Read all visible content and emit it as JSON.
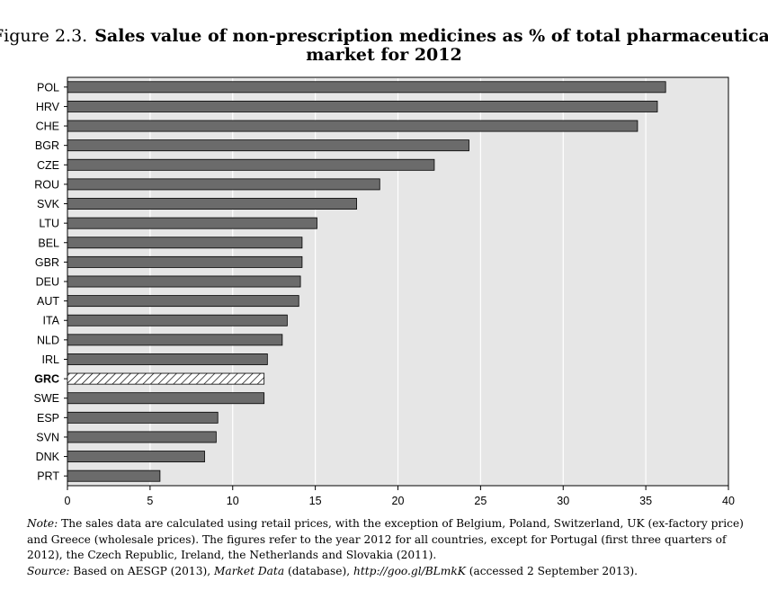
{
  "figure": {
    "number": "Figure 2.3.",
    "title_line1": "Sales value of non-prescription medicines as % of total pharmaceutical",
    "title_line2": "market for 2012"
  },
  "chart_data": {
    "type": "bar",
    "orientation": "horizontal",
    "categories": [
      "POL",
      "HRV",
      "CHE",
      "BGR",
      "CZE",
      "ROU",
      "SVK",
      "LTU",
      "BEL",
      "GBR",
      "DEU",
      "AUT",
      "ITA",
      "NLD",
      "IRL",
      "GRC",
      "SWE",
      "ESP",
      "SVN",
      "DNK",
      "PRT"
    ],
    "values": [
      36.2,
      35.7,
      34.5,
      24.3,
      22.2,
      18.9,
      17.5,
      15.1,
      14.2,
      14.2,
      14.1,
      14.0,
      13.3,
      13.0,
      12.1,
      11.9,
      11.9,
      9.1,
      9.0,
      8.3,
      5.6
    ],
    "highlight": "GRC",
    "xlim": [
      0,
      40
    ],
    "xticks": [
      0,
      5,
      10,
      15,
      20,
      25,
      30,
      35,
      40
    ],
    "grid": "vertical",
    "xlabel": "",
    "ylabel": "",
    "colors": {
      "bar": "#6b6b6b",
      "bar_border": "#000000",
      "plot_bg": "#e6e6e6",
      "grid": "#ffffff"
    }
  },
  "notes": {
    "note_label": "Note:",
    "note_text": " The sales data are calculated using retail prices, with the exception of Belgium, Poland, Switzerland, UK (ex-factory price) and Greece (wholesale prices). The figures refer to the year 2012 for all countries, except for Portugal (first three quarters of 2012), the Czech Republic, Ireland, the Netherlands and Slovakia (2011).",
    "source_label": "Source:",
    "source_pre": "  Based on AESGP (2013), ",
    "source_db": "Market Data",
    "source_mid": " (database), ",
    "source_url": "http://goo.gl/BLmkK",
    "source_post": " (accessed 2 September 2013)."
  }
}
